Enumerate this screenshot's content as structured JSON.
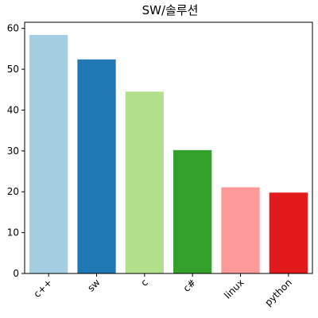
{
  "chart_data": {
    "type": "bar",
    "title": "SW/솔루션",
    "xlabel": "",
    "ylabel": "",
    "categories": [
      "c++",
      "sw",
      "c",
      "c#",
      "linux",
      "python"
    ],
    "values": [
      58.4,
      52.4,
      44.5,
      30.2,
      21.1,
      19.8
    ],
    "colors": [
      "#a6cee3",
      "#1f78b4",
      "#b2df8a",
      "#33a02c",
      "#fb9a99",
      "#e31a1c"
    ],
    "ylim": [
      0,
      61.5
    ],
    "yticks": [
      0,
      10,
      20,
      30,
      40,
      50,
      60
    ],
    "grid": false,
    "legend": "none"
  }
}
